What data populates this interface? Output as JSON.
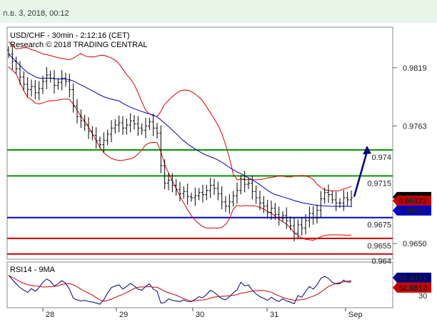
{
  "timestamp": "ก.ย. 3, 2018, 00:12",
  "chart_data": {
    "type": "candlestick",
    "title": "USD/CHF - 30min - 2:12:16 (CET)",
    "subtitle": "Research © 2018 TRADING CENTRAL",
    "ylim": [
      0.9635,
      0.9858
    ],
    "y_ticks": [
      "0.9819",
      "0.9763",
      "0.9650"
    ],
    "x_ticks": [
      "28",
      "29",
      "30",
      "31",
      "Sep"
    ],
    "levels": [
      {
        "value": 0.974,
        "label": "0.974",
        "color": "#009900"
      },
      {
        "value": 0.9715,
        "label": "0.9715",
        "color": "#009900"
      },
      {
        "value": 0.9675,
        "label": "0.9675",
        "color": "#0000cc"
      },
      {
        "value": 0.9655,
        "label": "0.9655",
        "color": "#cc0000"
      },
      {
        "value": 0.964,
        "label": "0.964",
        "color": "#cc0000"
      }
    ],
    "price_tags": [
      {
        "label": "0.9694",
        "value": 0.96948,
        "color": "#000000"
      },
      {
        "label": "0.96922",
        "value": 0.96922,
        "color": "#cc0000"
      },
      {
        "label": "0.96838",
        "value": 0.96838,
        "color": "#0000cc"
      }
    ],
    "closes": [
      0.9832,
      0.9825,
      0.9818,
      0.981,
      0.9803,
      0.9798,
      0.9801,
      0.9795,
      0.9799,
      0.9806,
      0.9812,
      0.9809,
      0.9802,
      0.9805,
      0.9809,
      0.9806,
      0.9798,
      0.9782,
      0.9772,
      0.9768,
      0.9764,
      0.9758,
      0.9754,
      0.9749,
      0.9745,
      0.9749,
      0.9755,
      0.9761,
      0.9764,
      0.9766,
      0.9761,
      0.9764,
      0.9768,
      0.9765,
      0.9761,
      0.9759,
      0.9763,
      0.9767,
      0.9761,
      0.9756,
      0.9725,
      0.9708,
      0.9711,
      0.9706,
      0.9702,
      0.9698,
      0.97,
      0.9695,
      0.9694,
      0.9696,
      0.9699,
      0.9697,
      0.9701,
      0.9706,
      0.9703,
      0.9698,
      0.969,
      0.9686,
      0.969,
      0.9696,
      0.9701,
      0.9712,
      0.9707,
      0.9708,
      0.97,
      0.9694,
      0.9689,
      0.9686,
      0.968,
      0.9684,
      0.9678,
      0.9675,
      0.9677,
      0.9672,
      0.9667,
      0.966,
      0.9668,
      0.9665,
      0.9672,
      0.9679,
      0.9675,
      0.9682,
      0.9693,
      0.9699,
      0.9697,
      0.9692,
      0.9689,
      0.9689,
      0.9694,
      0.9692,
      0.9694
    ],
    "rsi_panel": {
      "title": "RSI14 - 9MA",
      "ylim": [
        10,
        90
      ],
      "y_ticks": [
        "30"
      ],
      "tags": [
        {
          "label": "55.4471",
          "value": 55.4471,
          "color": "#000080"
        },
        {
          "label": "52.8812",
          "value": 52.8812,
          "color": "#cc0000"
        }
      ],
      "rsi": [
        68,
        60,
        52,
        45,
        40,
        36,
        43,
        38,
        45,
        55,
        61,
        57,
        48,
        52,
        58,
        53,
        42,
        25,
        22,
        20,
        21,
        19,
        18,
        16,
        14,
        22,
        35,
        45,
        48,
        50,
        42,
        47,
        53,
        48,
        42,
        40,
        47,
        52,
        42,
        38,
        16,
        17,
        24,
        21,
        20,
        19,
        22,
        19,
        19,
        23,
        28,
        26,
        32,
        40,
        36,
        30,
        24,
        22,
        28,
        35,
        41,
        55,
        48,
        50,
        40,
        33,
        28,
        25,
        21,
        27,
        22,
        19,
        24,
        20,
        18,
        15,
        30,
        27,
        38,
        47,
        42,
        50,
        62,
        66,
        62,
        55,
        52,
        52,
        59,
        55,
        55.4
      ]
    },
    "forecast_arrow": {
      "from": 0.9695,
      "to": 0.9744
    }
  }
}
